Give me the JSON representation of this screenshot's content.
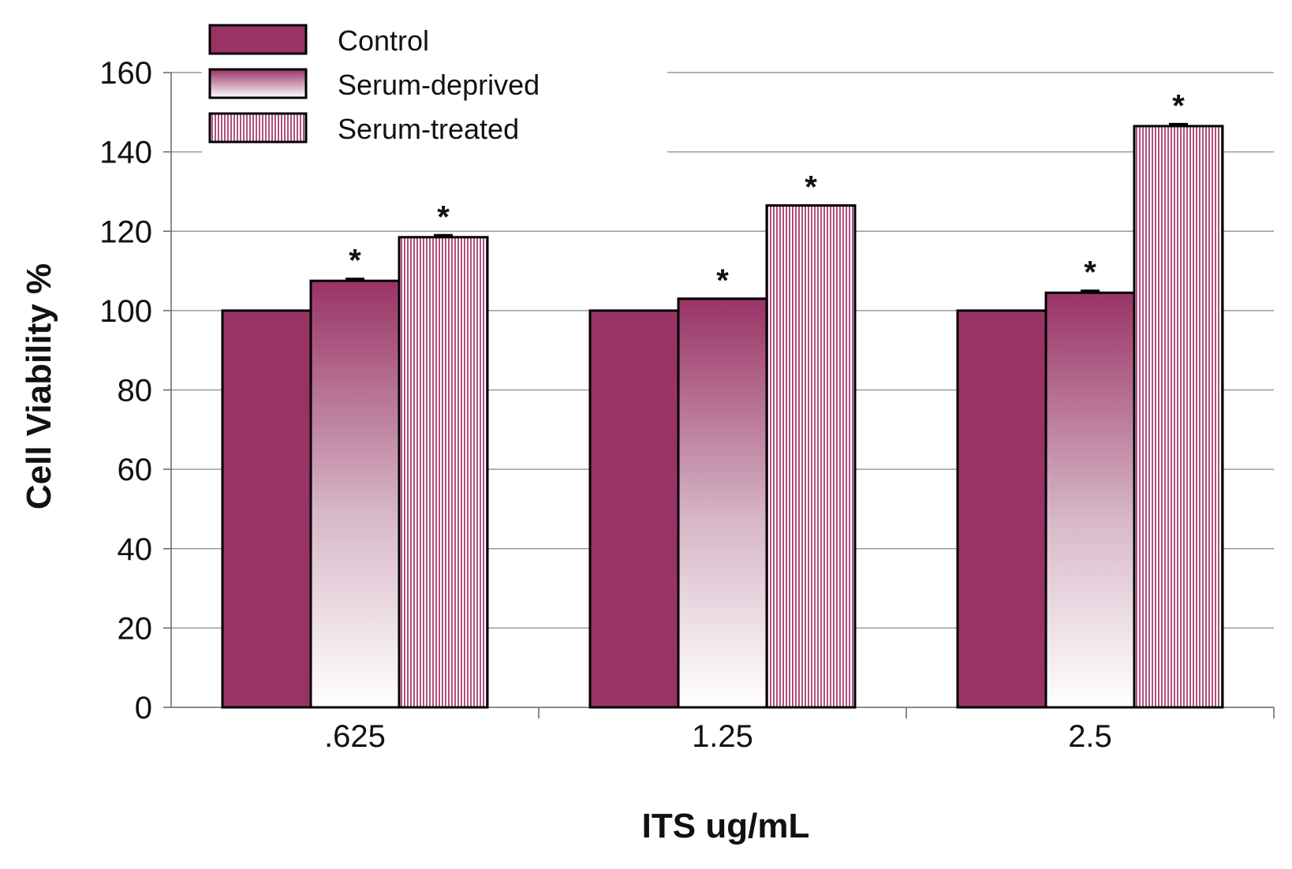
{
  "chart_data": {
    "type": "bar",
    "title": "",
    "xlabel": "ITS ug/mL",
    "ylabel": "Cell Viability %",
    "ylim": [
      0,
      160
    ],
    "yticks": [
      0,
      20,
      40,
      60,
      80,
      100,
      120,
      140,
      160
    ],
    "grid": true,
    "legend_position": "top-left",
    "categories": [
      ".625",
      "1.25",
      "2.5"
    ],
    "series": [
      {
        "name": "Control",
        "values": [
          100,
          100,
          100
        ],
        "color": "#993366",
        "fill": "solid",
        "errors": [
          0,
          0,
          0
        ],
        "significant": [
          false,
          false,
          false
        ]
      },
      {
        "name": "Serum-deprived",
        "values": [
          107.5,
          103,
          104.5
        ],
        "color": "#993366",
        "fill": "gradient",
        "errors": [
          0.5,
          0,
          0.5
        ],
        "significant": [
          true,
          true,
          true
        ]
      },
      {
        "name": "Serum-treated",
        "values": [
          118.5,
          126.5,
          146.5
        ],
        "color": "#cc6699",
        "fill": "vertical-stripes",
        "errors": [
          0.5,
          0,
          0.5
        ],
        "significant": [
          true,
          true,
          true
        ]
      }
    ],
    "significance_marker": "*"
  }
}
